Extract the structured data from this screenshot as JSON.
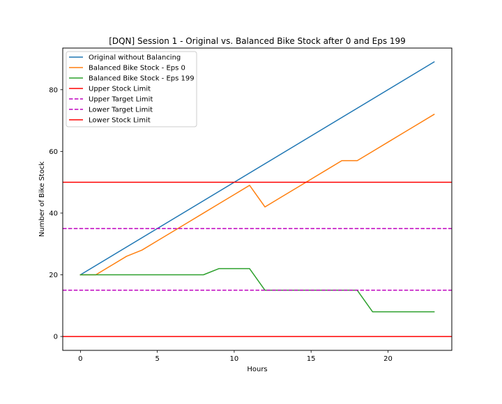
{
  "chart_data": {
    "type": "line",
    "title": "[DQN] Session 1 - Original vs. Balanced Bike Stock after 0 and Eps 199",
    "xlabel": "Hours",
    "ylabel": "Number of Bike Stock",
    "xlim": [
      -1.15,
      24.15
    ],
    "ylim": [
      -4.5,
      93.5
    ],
    "xticks": [
      0,
      5,
      10,
      15,
      20
    ],
    "yticks": [
      0,
      20,
      40,
      60,
      80
    ],
    "xtick_labels": [
      "0",
      "5",
      "10",
      "15",
      "20"
    ],
    "ytick_labels": [
      "0",
      "20",
      "40",
      "60",
      "80"
    ],
    "grid": false,
    "legend_position": "top-left",
    "series": [
      {
        "name": "Original without Balancing",
        "color": "#1f77b4",
        "style": "solid",
        "x": [
          0,
          23
        ],
        "y": [
          20,
          89
        ]
      },
      {
        "name": "Balanced Bike Stock - Eps 0",
        "color": "#ff7f0e",
        "style": "solid",
        "x": [
          0,
          1,
          2,
          3,
          4,
          5,
          6,
          7,
          8,
          9,
          10,
          11,
          12,
          13,
          14,
          15,
          16,
          17,
          18,
          19,
          20,
          21,
          22,
          23
        ],
        "y": [
          20,
          20,
          23,
          26,
          28,
          31,
          34,
          37,
          40,
          43,
          46,
          49,
          42,
          45,
          48,
          51,
          54,
          57,
          57,
          60,
          63,
          66,
          69,
          72
        ]
      },
      {
        "name": "Balanced Bike Stock - Eps 199",
        "color": "#2ca02c",
        "style": "solid",
        "x": [
          0,
          1,
          2,
          3,
          4,
          5,
          6,
          7,
          8,
          9,
          10,
          11,
          12,
          13,
          14,
          15,
          16,
          17,
          18,
          19,
          20,
          21,
          22,
          23
        ],
        "y": [
          20,
          20,
          20,
          20,
          20,
          20,
          20,
          20,
          20,
          22,
          22,
          22,
          15,
          15,
          15,
          15,
          15,
          15,
          15,
          8,
          8,
          8,
          8,
          8
        ]
      }
    ],
    "hlines": [
      {
        "name": "Upper Stock Limit",
        "y": 50,
        "color": "#ff0000",
        "style": "solid"
      },
      {
        "name": "Upper Target Limit",
        "y": 35,
        "color": "#bf00bf",
        "style": "dashed"
      },
      {
        "name": "Lower Target Limit",
        "y": 15,
        "color": "#bf00bf",
        "style": "dashed"
      },
      {
        "name": "Lower Stock Limit",
        "y": 0,
        "color": "#ff0000",
        "style": "solid"
      }
    ]
  }
}
